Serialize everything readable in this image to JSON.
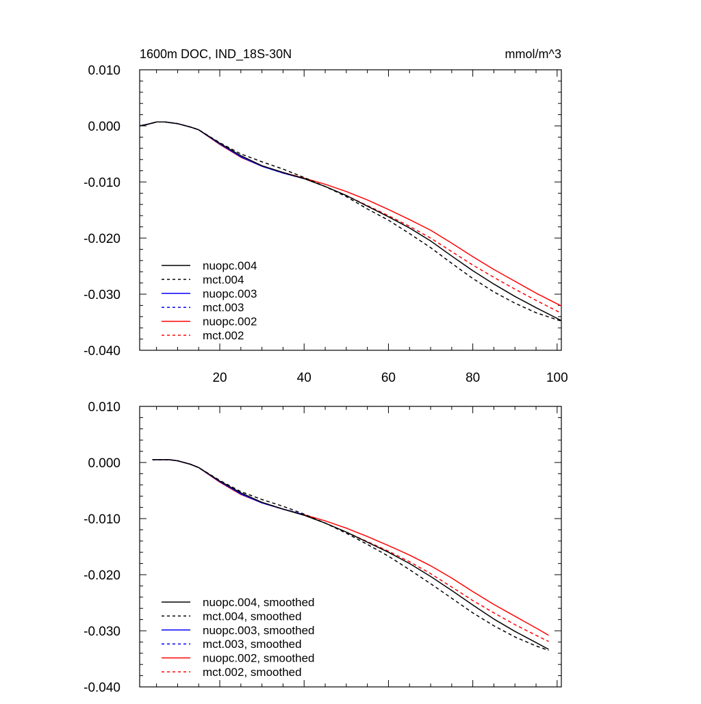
{
  "chart_data": [
    {
      "type": "line",
      "title": "1600m DOC, IND_18S-30N",
      "units": "mmol/m^3",
      "xlabel": "",
      "ylabel": "",
      "xlim": [
        1,
        101
      ],
      "ylim": [
        -0.04,
        0.01
      ],
      "xticks": [
        20,
        40,
        60,
        80,
        100
      ],
      "xtick_labels": [
        "20",
        "40",
        "60",
        "80",
        "100"
      ],
      "yticks": [
        0.01,
        0.0,
        -0.01,
        -0.02,
        -0.03,
        -0.04
      ],
      "ytick_labels": [
        "0.010",
        "0.000",
        "-0.010",
        "-0.020",
        "-0.030",
        "-0.040"
      ],
      "legend_position": "bottom-left",
      "series": [
        {
          "name": "nuopc.004",
          "color": "#000000",
          "dash": "solid",
          "x": [
            1,
            3,
            5,
            7,
            10,
            13,
            15,
            20,
            25,
            30,
            35,
            40,
            45,
            50,
            55,
            60,
            65,
            70,
            75,
            80,
            85,
            90,
            95,
            101
          ],
          "y": [
            0.0,
            0.0003,
            0.0007,
            0.0007,
            0.0004,
            -0.0002,
            -0.0007,
            -0.0031,
            -0.0053,
            -0.0071,
            -0.0083,
            -0.0094,
            -0.0108,
            -0.0124,
            -0.0143,
            -0.0162,
            -0.0182,
            -0.0205,
            -0.0232,
            -0.0258,
            -0.0282,
            -0.0304,
            -0.0324,
            -0.0347
          ]
        },
        {
          "name": "mct.004",
          "color": "#000000",
          "dash": "dashed",
          "x": [
            1,
            3,
            5,
            7,
            10,
            13,
            15,
            20,
            25,
            30,
            35,
            40,
            45,
            50,
            55,
            60,
            65,
            70,
            75,
            80,
            85,
            90,
            95,
            101
          ],
          "y": [
            0.0,
            0.0003,
            0.0007,
            0.0007,
            0.0004,
            -0.0002,
            -0.0007,
            -0.003,
            -0.005,
            -0.0064,
            -0.0077,
            -0.0092,
            -0.0108,
            -0.0126,
            -0.0148,
            -0.0168,
            -0.0192,
            -0.0217,
            -0.0245,
            -0.0272,
            -0.0296,
            -0.0316,
            -0.0333,
            -0.0348
          ]
        },
        {
          "name": "nuopc.003",
          "color": "#0000ff",
          "dash": "solid",
          "x": [
            1,
            3,
            5,
            7,
            10,
            13,
            15,
            20,
            25,
            30,
            35,
            40
          ],
          "y": [
            0.0,
            0.0003,
            0.0007,
            0.0007,
            0.0004,
            -0.0002,
            -0.0007,
            -0.0032,
            -0.0055,
            -0.0072,
            -0.0084,
            -0.0094
          ]
        },
        {
          "name": "mct.003",
          "color": "#0000ff",
          "dash": "dashed",
          "x": [
            1,
            3,
            5,
            7,
            10,
            13,
            15,
            20,
            25,
            30,
            35,
            40
          ],
          "y": [
            0.0,
            0.0003,
            0.0007,
            0.0007,
            0.0004,
            -0.0002,
            -0.0007,
            -0.0032,
            -0.0055,
            -0.0072,
            -0.0084,
            -0.0094
          ]
        },
        {
          "name": "nuopc.002",
          "color": "#ff0000",
          "dash": "solid",
          "x": [
            1,
            3,
            5,
            7,
            10,
            13,
            15,
            20,
            25,
            30,
            35,
            40,
            45,
            50,
            55,
            60,
            65,
            70,
            75,
            80,
            85,
            90,
            95,
            101
          ],
          "y": [
            0.0,
            0.0003,
            0.0007,
            0.0007,
            0.0004,
            -0.0002,
            -0.0007,
            -0.0033,
            -0.0056,
            -0.0072,
            -0.0083,
            -0.0093,
            -0.0104,
            -0.0117,
            -0.0132,
            -0.0149,
            -0.0167,
            -0.0186,
            -0.0209,
            -0.0233,
            -0.0256,
            -0.0277,
            -0.0298,
            -0.0321
          ]
        },
        {
          "name": "mct.002",
          "color": "#ff0000",
          "dash": "dashed",
          "x": [
            1,
            3,
            5,
            7,
            10,
            13,
            15,
            20,
            25,
            30,
            35,
            40,
            45,
            50,
            55,
            60,
            65,
            70,
            75,
            80,
            85,
            90,
            95,
            101
          ],
          "y": [
            0.0,
            0.0003,
            0.0007,
            0.0007,
            0.0004,
            -0.0002,
            -0.0007,
            -0.0032,
            -0.0054,
            -0.0071,
            -0.0083,
            -0.0094,
            -0.0108,
            -0.0124,
            -0.0142,
            -0.016,
            -0.0179,
            -0.02,
            -0.0224,
            -0.0248,
            -0.027,
            -0.0291,
            -0.0311,
            -0.0334
          ]
        }
      ]
    },
    {
      "type": "line",
      "title": "",
      "xlabel": "",
      "ylabel": "",
      "xlim": [
        1,
        101
      ],
      "ylim": [
        -0.04,
        0.01
      ],
      "xticks": [
        20,
        40,
        60,
        80,
        100
      ],
      "yticks": [
        0.01,
        0.0,
        -0.01,
        -0.02,
        -0.03,
        -0.04
      ],
      "ytick_labels": [
        "0.010",
        "0.000",
        "-0.010",
        "-0.020",
        "-0.030",
        "-0.040"
      ],
      "legend_position": "bottom-left",
      "series": [
        {
          "name": "nuopc.004, smoothed",
          "color": "#000000",
          "dash": "solid",
          "x": [
            4,
            6,
            8,
            10,
            13,
            15,
            20,
            25,
            30,
            35,
            40,
            45,
            50,
            55,
            60,
            65,
            70,
            75,
            80,
            85,
            90,
            95,
            98
          ],
          "y": [
            0.0005,
            0.0005,
            0.0005,
            0.0003,
            -0.0003,
            -0.0009,
            -0.0033,
            -0.0054,
            -0.0071,
            -0.0083,
            -0.0094,
            -0.0108,
            -0.0124,
            -0.0142,
            -0.016,
            -0.018,
            -0.0203,
            -0.0228,
            -0.0254,
            -0.0279,
            -0.0301,
            -0.0321,
            -0.0333
          ]
        },
        {
          "name": "mct.004, smoothed",
          "color": "#000000",
          "dash": "dashed",
          "x": [
            4,
            6,
            8,
            10,
            13,
            15,
            20,
            25,
            30,
            35,
            40,
            45,
            50,
            55,
            60,
            65,
            70,
            75,
            80,
            85,
            90,
            95,
            98
          ],
          "y": [
            0.0005,
            0.0005,
            0.0005,
            0.0003,
            -0.0003,
            -0.0009,
            -0.0032,
            -0.0052,
            -0.0066,
            -0.0078,
            -0.0092,
            -0.0108,
            -0.0126,
            -0.0146,
            -0.0167,
            -0.0191,
            -0.0216,
            -0.0242,
            -0.0268,
            -0.0291,
            -0.0311,
            -0.0327,
            -0.0335
          ]
        },
        {
          "name": "nuopc.003, smoothed",
          "color": "#0000ff",
          "dash": "solid",
          "x": [
            4,
            6,
            8,
            10,
            13,
            15,
            20,
            25,
            30,
            35,
            40
          ],
          "y": [
            0.0005,
            0.0005,
            0.0005,
            0.0003,
            -0.0003,
            -0.0009,
            -0.0034,
            -0.0056,
            -0.0072,
            -0.0083,
            -0.0093
          ]
        },
        {
          "name": "mct.003, smoothed",
          "color": "#0000ff",
          "dash": "dashed",
          "x": [
            4,
            6,
            8,
            10,
            13,
            15,
            20,
            25,
            30,
            35,
            40
          ],
          "y": [
            0.0005,
            0.0005,
            0.0005,
            0.0003,
            -0.0003,
            -0.0009,
            -0.0034,
            -0.0056,
            -0.0072,
            -0.0083,
            -0.0093
          ]
        },
        {
          "name": "nuopc.002, smoothed",
          "color": "#ff0000",
          "dash": "solid",
          "x": [
            4,
            6,
            8,
            10,
            13,
            15,
            20,
            25,
            30,
            35,
            40,
            45,
            50,
            55,
            60,
            65,
            70,
            75,
            80,
            85,
            90,
            95,
            98
          ],
          "y": [
            0.0005,
            0.0005,
            0.0005,
            0.0003,
            -0.0003,
            -0.0009,
            -0.0035,
            -0.0057,
            -0.0072,
            -0.0083,
            -0.0093,
            -0.0104,
            -0.0117,
            -0.0132,
            -0.0148,
            -0.0165,
            -0.0184,
            -0.0206,
            -0.023,
            -0.0253,
            -0.0274,
            -0.0295,
            -0.0308
          ]
        },
        {
          "name": "mct.002, smoothed",
          "color": "#ff0000",
          "dash": "dashed",
          "x": [
            4,
            6,
            8,
            10,
            13,
            15,
            20,
            25,
            30,
            35,
            40,
            45,
            50,
            55,
            60,
            65,
            70,
            75,
            80,
            85,
            90,
            95,
            98
          ],
          "y": [
            0.0005,
            0.0005,
            0.0005,
            0.0003,
            -0.0003,
            -0.0009,
            -0.0034,
            -0.0055,
            -0.0071,
            -0.0083,
            -0.0094,
            -0.0108,
            -0.0124,
            -0.0141,
            -0.0158,
            -0.0177,
            -0.0198,
            -0.0222,
            -0.0246,
            -0.0268,
            -0.0289,
            -0.0308,
            -0.0319
          ]
        }
      ]
    }
  ]
}
